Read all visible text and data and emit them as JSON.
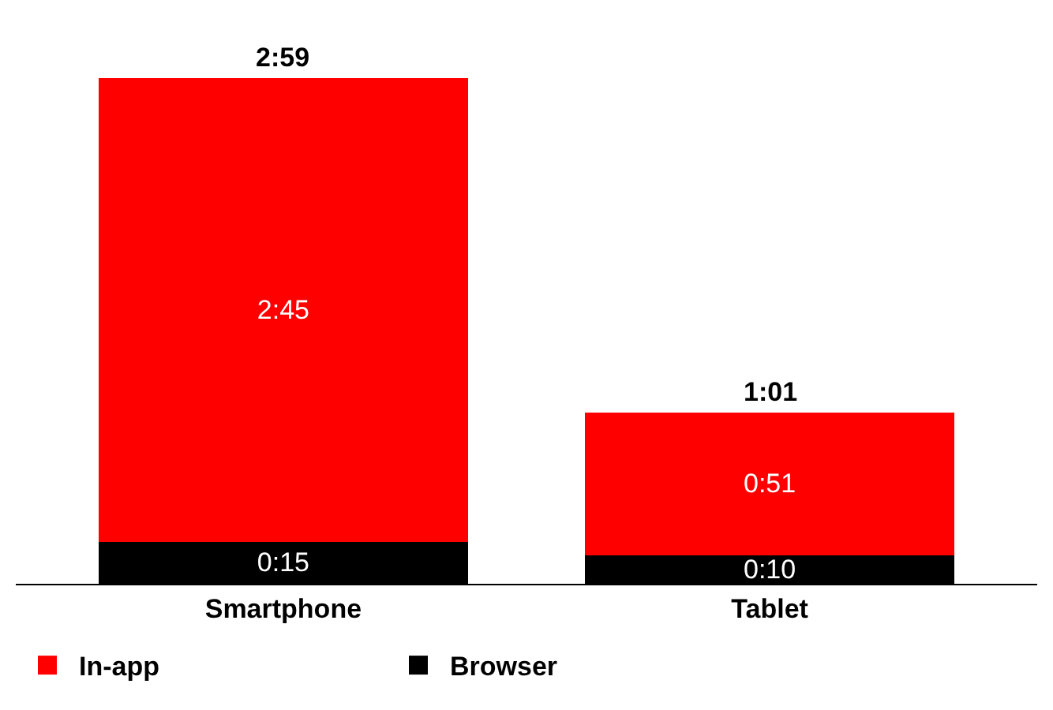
{
  "chart_data": {
    "type": "bar",
    "stacked": true,
    "categories": [
      "Smartphone",
      "Tablet"
    ],
    "series": [
      {
        "name": "Browser",
        "color": "#000000",
        "values": [
          0.25,
          0.1667
        ],
        "value_labels": [
          "0:15",
          "0:10"
        ]
      },
      {
        "name": "In-app",
        "color": "#ff0000",
        "values": [
          2.75,
          0.85
        ],
        "value_labels": [
          "2:45",
          "0:51"
        ]
      }
    ],
    "totals": [
      "2:59",
      "1:01"
    ],
    "legend": "bottom left"
  }
}
